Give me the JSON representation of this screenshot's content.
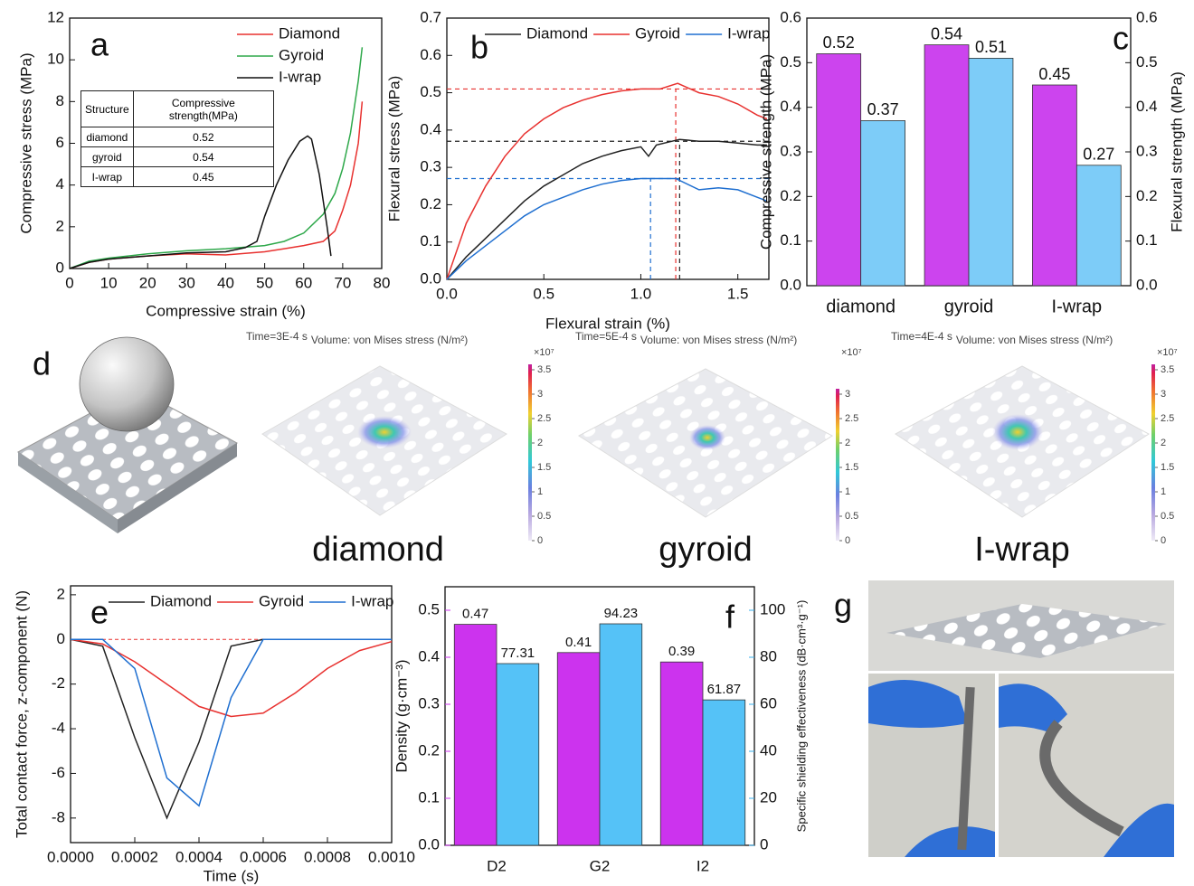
{
  "chart_data": [
    {
      "type": "line",
      "panel_label": "a",
      "xlabel": "Compressive strain (%)",
      "ylabel": "Compressive stress (MPa)",
      "xlim": [
        0,
        80
      ],
      "ylim": [
        0,
        12
      ],
      "xticks": [
        0,
        10,
        20,
        30,
        40,
        50,
        60,
        70,
        80
      ],
      "yticks": [
        0,
        2,
        4,
        6,
        8,
        10,
        12
      ],
      "legend": "upper right",
      "series": [
        {
          "name": "Diamond",
          "color": "#e8312f",
          "x": [
            0,
            5,
            10,
            20,
            30,
            40,
            50,
            55,
            60,
            65,
            68,
            70,
            72,
            74,
            75
          ],
          "values": [
            0,
            0.3,
            0.45,
            0.6,
            0.7,
            0.65,
            0.8,
            0.95,
            1.1,
            1.3,
            1.8,
            2.8,
            4,
            6,
            8
          ]
        },
        {
          "name": "Gyroid",
          "color": "#2ea84a",
          "x": [
            0,
            5,
            10,
            20,
            30,
            40,
            50,
            55,
            60,
            65,
            68,
            70,
            72,
            74,
            75
          ],
          "values": [
            0,
            0.35,
            0.5,
            0.7,
            0.85,
            0.95,
            1.1,
            1.3,
            1.7,
            2.6,
            3.6,
            4.8,
            6.5,
            9,
            10.6
          ]
        },
        {
          "name": "I-wrap",
          "color": "#111111",
          "x": [
            0,
            5,
            10,
            20,
            30,
            40,
            45,
            48,
            50,
            53,
            56,
            59,
            61,
            62,
            64,
            66,
            67
          ],
          "values": [
            0,
            0.3,
            0.45,
            0.6,
            0.75,
            0.8,
            1,
            1.3,
            2.5,
            4,
            5.2,
            6.1,
            6.35,
            6.2,
            4.5,
            2,
            0.6
          ]
        }
      ],
      "inset_table": {
        "header": [
          "Structure",
          "Compressive strength(MPa)"
        ],
        "rows": [
          [
            "diamond",
            0.52
          ],
          [
            "gyroid",
            0.54
          ],
          [
            "I-wrap",
            0.45
          ]
        ]
      }
    },
    {
      "type": "line",
      "panel_label": "b",
      "xlabel": "Flexural strain (%)",
      "ylabel": "Flexural stress (MPa)",
      "xlim": [
        0,
        1.66
      ],
      "ylim": [
        0,
        0.7
      ],
      "xticks": [
        {
          "value": 0,
          "label": "0.0"
        },
        0.5,
        {
          "value": 1,
          "label": "1.0"
        },
        1.5
      ],
      "yticks": [
        {
          "value": 0,
          "label": "0.0"
        },
        0.1,
        0.2,
        0.3,
        0.4,
        0.5,
        0.6,
        0.7
      ],
      "legend": "top",
      "series": [
        {
          "name": "Diamond",
          "color": "#222222",
          "x": [
            0,
            0.1,
            0.2,
            0.3,
            0.4,
            0.5,
            0.6,
            0.7,
            0.8,
            0.9,
            1.0,
            1.04,
            1.08,
            1.2,
            1.3,
            1.4,
            1.5,
            1.6,
            1.65
          ],
          "values": [
            0,
            0.06,
            0.11,
            0.16,
            0.21,
            0.25,
            0.28,
            0.31,
            0.33,
            0.345,
            0.355,
            0.33,
            0.36,
            0.375,
            0.37,
            0.37,
            0.365,
            0.36,
            0.36
          ]
        },
        {
          "name": "Gyroid",
          "color": "#e8312f",
          "x": [
            0,
            0.1,
            0.2,
            0.3,
            0.4,
            0.5,
            0.6,
            0.7,
            0.8,
            0.9,
            1.0,
            1.1,
            1.19,
            1.3,
            1.4,
            1.5,
            1.6,
            1.65
          ],
          "values": [
            0,
            0.15,
            0.25,
            0.33,
            0.39,
            0.43,
            0.46,
            0.48,
            0.495,
            0.505,
            0.51,
            0.51,
            0.525,
            0.5,
            0.49,
            0.47,
            0.44,
            0.43
          ]
        },
        {
          "name": "I-wrap",
          "color": "#1f6fd0",
          "x": [
            0,
            0.1,
            0.2,
            0.3,
            0.4,
            0.5,
            0.6,
            0.7,
            0.8,
            0.9,
            1.0,
            1.1,
            1.18,
            1.3,
            1.4,
            1.5,
            1.6,
            1.65
          ],
          "values": [
            0,
            0.05,
            0.09,
            0.13,
            0.17,
            0.2,
            0.22,
            0.24,
            0.255,
            0.265,
            0.27,
            0.27,
            0.27,
            0.24,
            0.245,
            0.24,
            0.22,
            0.21
          ]
        }
      ],
      "reference_lines": [
        {
          "x": 1.18,
          "y": 0.51,
          "color": "#e8312f"
        },
        {
          "x": 1.2,
          "y": 0.37,
          "color": "#222222"
        },
        {
          "x": 1.05,
          "y": 0.27,
          "color": "#1f6fd0"
        }
      ]
    },
    {
      "type": "bar",
      "panel_label": "c",
      "ylabel": "Compressive strength (MPa)",
      "y2label": "Flexural strength (MPa)",
      "categories": [
        "diamond",
        "gyroid",
        "I-wrap"
      ],
      "ylim": [
        0,
        0.6
      ],
      "yticks": [
        {
          "value": 0,
          "label": "0.0"
        },
        0.1,
        0.2,
        0.3,
        0.4,
        0.5,
        0.6
      ],
      "y2lim": [
        0,
        0.6
      ],
      "y2ticks": [
        {
          "value": 0,
          "label": "0.0"
        },
        0.1,
        0.2,
        0.3,
        0.4,
        0.5,
        0.6
      ],
      "series": [
        {
          "color": "#cc44ee",
          "values": [
            0.52,
            0.54,
            0.45
          ]
        },
        {
          "color": "#7dccf8",
          "values": [
            0.37,
            0.51,
            0.27
          ],
          "axis": "y2"
        }
      ]
    },
    {
      "type": "line",
      "panel_label": "e",
      "xlabel": "Time (s)",
      "ylabel": "Total contact force, z-component (N)",
      "xlim": [
        0,
        0.001
      ],
      "ylim": [
        -9.1,
        2.4
      ],
      "xticks": [
        {
          "value": 0,
          "label": "0.0000"
        },
        {
          "value": 0.0002,
          "label": "0.0002"
        },
        {
          "value": 0.0004,
          "label": "0.0004"
        },
        {
          "value": 0.0006,
          "label": "0.0006"
        },
        {
          "value": 0.0008,
          "label": "0.0008"
        },
        {
          "value": 0.001,
          "label": "0.0010"
        }
      ],
      "yticks": [
        -8,
        -6,
        -4,
        -2,
        0,
        2
      ],
      "legend": "top",
      "zero_line_color": "#e8312f",
      "series": [
        {
          "name": "Diamond",
          "color": "#222222",
          "x": [
            0,
            0.0001,
            0.0002,
            0.0003,
            0.0004,
            0.0005,
            0.0006,
            0.001
          ],
          "values": [
            0,
            -0.3,
            -4.4,
            -8,
            -4.6,
            -0.3,
            0,
            0
          ]
        },
        {
          "name": "Gyroid",
          "color": "#e8312f",
          "x": [
            0,
            0.0001,
            0.0002,
            0.0003,
            0.0004,
            0.0005,
            0.0006,
            0.0007,
            0.0008,
            0.0009,
            0.001
          ],
          "values": [
            0,
            -0.2,
            -1,
            -2,
            -3,
            -3.45,
            -3.3,
            -2.4,
            -1.3,
            -0.5,
            -0.1
          ]
        },
        {
          "name": "I-wrap",
          "color": "#1f6fd0",
          "x": [
            0,
            0.0001,
            0.0002,
            0.0003,
            0.0004,
            0.0005,
            0.0006,
            0.001
          ],
          "values": [
            0,
            0,
            -1.3,
            -6.2,
            -7.45,
            -2.6,
            0,
            0
          ]
        }
      ]
    },
    {
      "type": "bar",
      "panel_label": "f",
      "ylabel": "Density (g·cm⁻³)",
      "y2label": "Specific shielding effectiveness (dB·cm³·g⁻¹)",
      "categories": [
        "D2",
        "G2",
        "I2"
      ],
      "y_color": "#cc33ee",
      "y2_color": "#3bb0ee",
      "ylim": [
        0,
        0.55
      ],
      "yticks": [
        {
          "value": 0,
          "label": "0.0"
        },
        0.1,
        0.2,
        0.3,
        0.4,
        0.5
      ],
      "y2lim": [
        0,
        110
      ],
      "y2ticks": [
        0,
        20,
        40,
        60,
        80,
        100
      ],
      "series": [
        {
          "color": "#cc33ee",
          "values": [
            0.47,
            0.41,
            0.39
          ]
        },
        {
          "color": "#55c2f7",
          "values": [
            77.31,
            94.23,
            61.87
          ],
          "axis": "y2"
        }
      ]
    }
  ],
  "simulation_panel": {
    "panel_label": "d",
    "simulations": [
      {
        "time": "Time=3E-4 s",
        "field": "Volume: von Mises stress (N/m²)",
        "scale": "×10⁷",
        "colorbar_ticks": [
          0,
          0.5,
          1,
          1.5,
          2,
          2.5,
          3,
          3.5
        ],
        "label": "diamond"
      },
      {
        "time": "Time=5E-4 s",
        "field": "Volume: von Mises stress (N/m²)",
        "scale": "×10⁷",
        "colorbar_ticks": [
          0,
          0.5,
          1,
          1.5,
          2,
          2.5,
          3
        ],
        "label": "gyroid"
      },
      {
        "time": "Time=4E-4 s",
        "field": "Volume: von Mises stress (N/m²)",
        "scale": "×10⁷",
        "colorbar_ticks": [
          0,
          0.5,
          1,
          1.5,
          2,
          2.5,
          3,
          3.5
        ],
        "label": "I-wrap"
      }
    ]
  },
  "photo_panel": {
    "panel_label": "g"
  }
}
